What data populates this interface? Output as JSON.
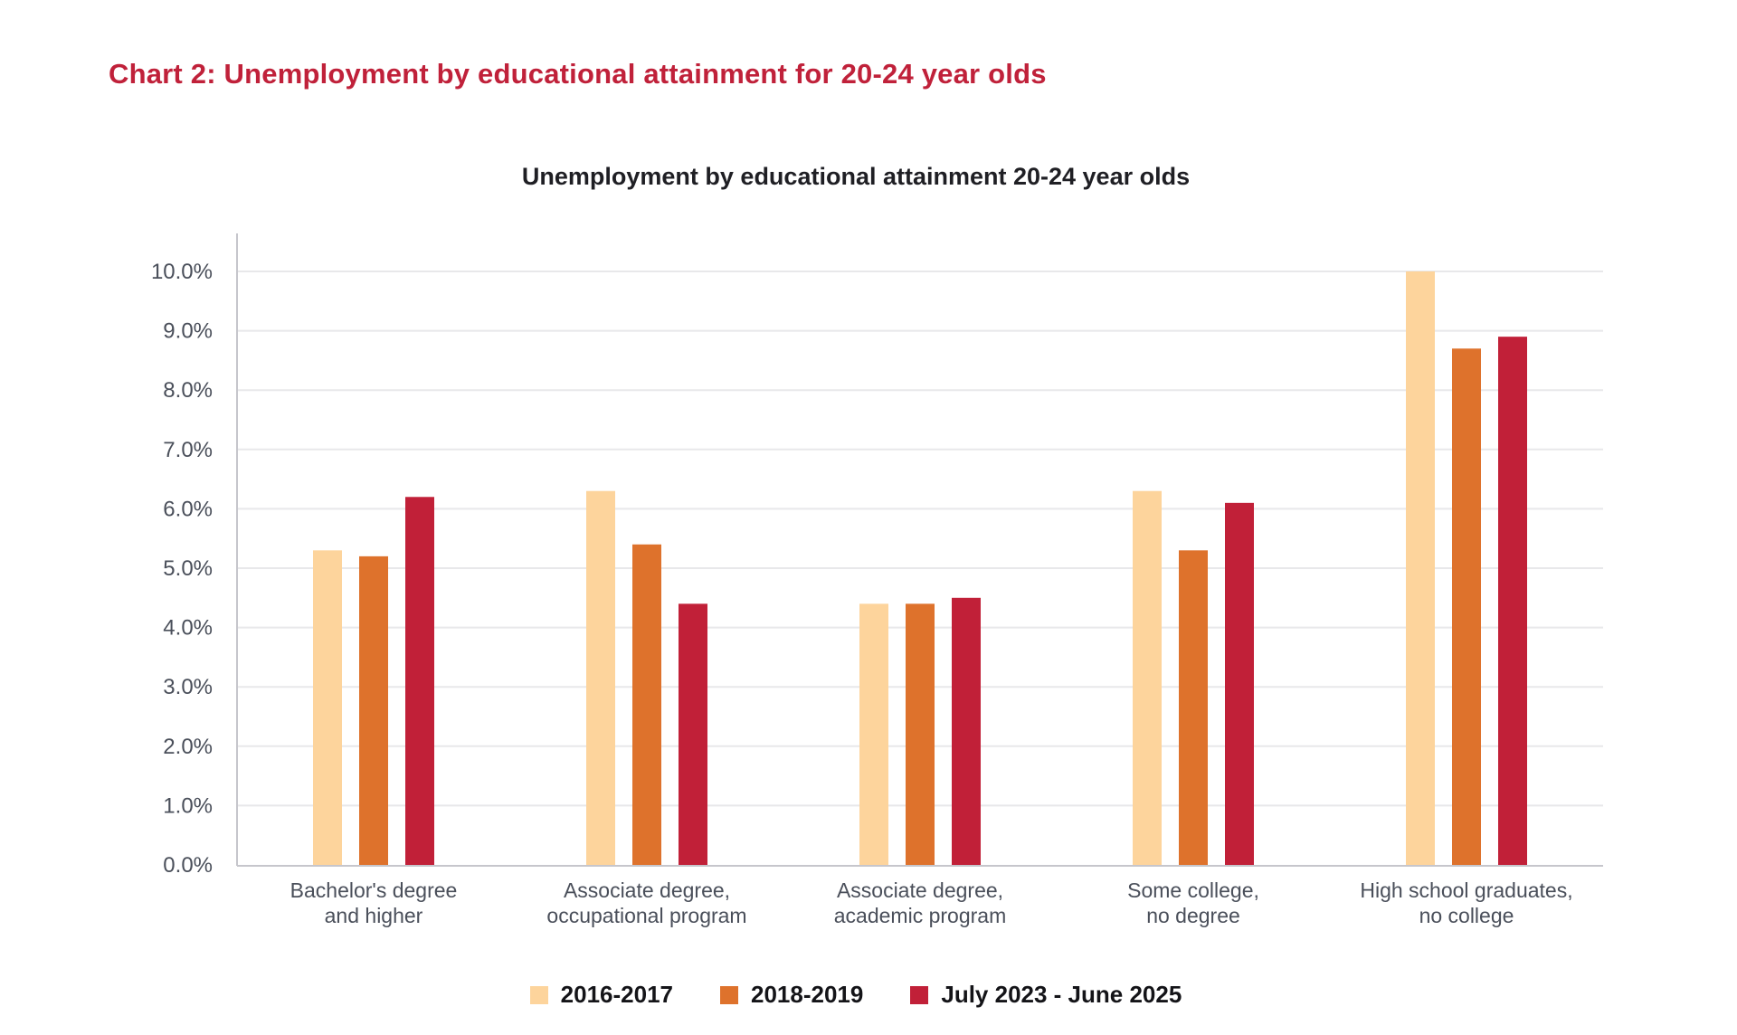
{
  "page": {
    "title": "Chart 2: Unemployment by educational attainment for 20-24 year olds"
  },
  "colors": {
    "title": "#c0213a",
    "series_2016_2017": "#fdd49c",
    "series_2018_2019": "#de722c",
    "series_2023_2025": "#c12038",
    "gridline": "#e8e8ea",
    "axis": "#c6c6cc"
  },
  "chart_data": {
    "type": "bar",
    "title": "Unemployment by educational attainment 20-24 year olds",
    "xlabel": "",
    "ylabel": "",
    "categories": [
      "Bachelor's degree and higher",
      "Associate degree, occupational program",
      "Associate degree, academic program",
      "Some college, no degree",
      "High school graduates, no college"
    ],
    "category_lines": [
      [
        "Bachelor's degree",
        "and higher"
      ],
      [
        "Associate degree,",
        "occupational program"
      ],
      [
        "Associate degree,",
        "academic program"
      ],
      [
        "Some college,",
        "no degree"
      ],
      [
        "High school graduates,",
        "no college"
      ]
    ],
    "series": [
      {
        "name": "2016-2017",
        "color": "#fdd49c",
        "values": [
          5.3,
          6.3,
          4.4,
          6.3,
          10.0
        ]
      },
      {
        "name": "2018-2019",
        "color": "#de722c",
        "values": [
          5.2,
          5.4,
          4.4,
          5.3,
          8.7
        ]
      },
      {
        "name": "July 2023 - June 2025",
        "color": "#c12038",
        "values": [
          6.2,
          4.4,
          4.5,
          6.1,
          8.9
        ]
      }
    ],
    "ylim": [
      0,
      10
    ],
    "yticks": [
      "0.0%",
      "1.0%",
      "2.0%",
      "3.0%",
      "4.0%",
      "5.0%",
      "6.0%",
      "7.0%",
      "8.0%",
      "9.0%",
      "10.0%"
    ],
    "unit": "%",
    "grid": true,
    "legend_position": "bottom"
  },
  "legend": [
    {
      "label": "2016-2017",
      "color": "#fdd49c"
    },
    {
      "label": "2018-2019",
      "color": "#de722c"
    },
    {
      "label": "July 2023 - June 2025",
      "color": "#c12038"
    }
  ]
}
